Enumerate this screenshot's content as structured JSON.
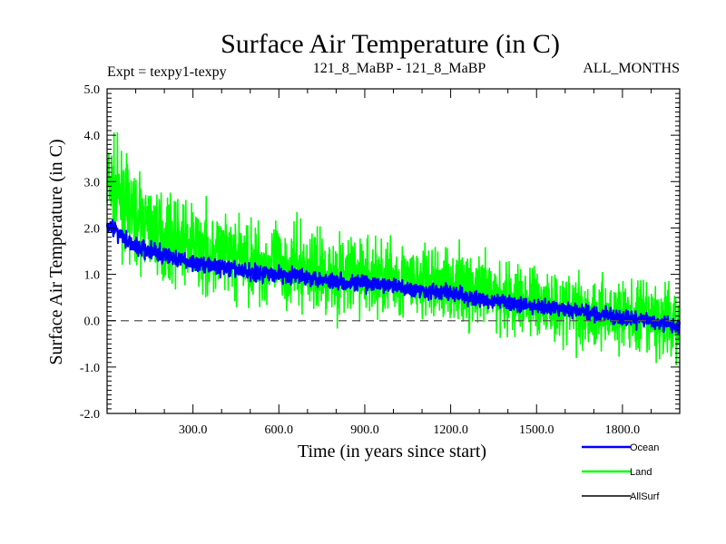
{
  "chart_data": {
    "type": "line",
    "title": "Surface Air Temperature (in C)",
    "subtitle_left": "Expt = texpy1-texpy",
    "subtitle_center": "121_8_MaBP - 121_8_MaBP",
    "subtitle_right": "ALL_MONTHS",
    "xlabel": "Time (in years since start)",
    "ylabel": "Surface Air Temperature (in C)",
    "xlim": [
      0,
      2000
    ],
    "ylim": [
      -2.0,
      5.0
    ],
    "x_ticks": [
      300,
      600,
      900,
      1200,
      1500,
      1800
    ],
    "x_tick_labels": [
      "300.0",
      "600.0",
      "900.0",
      "1200.0",
      "1500.0",
      "1800.0"
    ],
    "y_ticks": [
      -2,
      -1,
      0,
      1,
      2,
      3,
      4,
      5
    ],
    "y_tick_labels": [
      "-2.0",
      "-1.0",
      "0.0",
      "1.0",
      "2.0",
      "3.0",
      "4.0",
      "5.0"
    ],
    "reference_line": {
      "y": 0.0,
      "style": "dashed"
    },
    "legend_position": "bottom-right, outside plot",
    "series": [
      {
        "name": "Land",
        "color": "#00ff00",
        "x": [
          0,
          100,
          200,
          300,
          400,
          500,
          600,
          700,
          800,
          900,
          1000,
          1100,
          1200,
          1300,
          1400,
          1500,
          1600,
          1700,
          1800,
          1900,
          2000
        ],
        "values": [
          3.0,
          2.2,
          1.8,
          1.6,
          1.4,
          1.3,
          1.2,
          1.1,
          1.0,
          1.0,
          0.9,
          0.8,
          0.8,
          0.6,
          0.5,
          0.4,
          0.3,
          0.2,
          0.1,
          0.0,
          -0.1
        ],
        "spread": [
          1.2,
          1.2,
          1.1,
          1.1,
          1.1,
          1.1,
          1.1,
          1.1,
          1.1,
          1.1,
          1.1,
          1.0,
          1.0,
          1.0,
          1.0,
          1.0,
          1.0,
          1.0,
          1.0,
          1.0,
          1.0
        ]
      },
      {
        "name": "Ocean",
        "color": "#0000ff",
        "x": [
          0,
          100,
          200,
          300,
          400,
          500,
          600,
          700,
          800,
          900,
          1000,
          1100,
          1200,
          1300,
          1400,
          1500,
          1600,
          1700,
          1800,
          1900,
          2000
        ],
        "values": [
          2.1,
          1.6,
          1.4,
          1.25,
          1.15,
          1.05,
          1.0,
          0.95,
          0.85,
          0.8,
          0.75,
          0.65,
          0.6,
          0.45,
          0.4,
          0.3,
          0.25,
          0.15,
          0.05,
          0.0,
          -0.15
        ],
        "spread": [
          0.25,
          0.25,
          0.25,
          0.22,
          0.22,
          0.22,
          0.22,
          0.22,
          0.22,
          0.22,
          0.22,
          0.22,
          0.22,
          0.2,
          0.2,
          0.2,
          0.2,
          0.2,
          0.2,
          0.2,
          0.2
        ]
      },
      {
        "name": "AllSurf",
        "color": "#000000",
        "x": [],
        "values": []
      }
    ]
  }
}
